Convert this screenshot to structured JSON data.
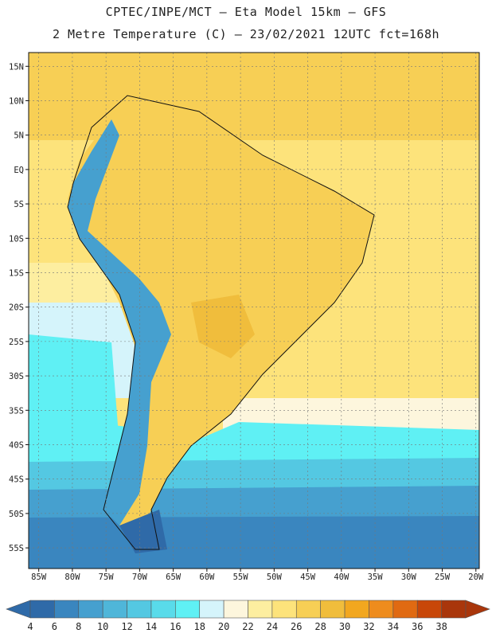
{
  "header": {
    "title_line1": "CPTEC/INPE/MCT –  Eta Model 15km – GFS",
    "title_line2": "2 Metre Temperature (C) – 23/02/2021 12UTC fct=168h"
  },
  "map": {
    "lat_labels": [
      "15N",
      "10N",
      "5N",
      "EQ",
      "5S",
      "10S",
      "15S",
      "20S",
      "25S",
      "30S",
      "35S",
      "40S",
      "45S",
      "50S",
      "55S"
    ],
    "lon_labels": [
      "85W",
      "80W",
      "75W",
      "70W",
      "65W",
      "60W",
      "55W",
      "50W",
      "45W",
      "40W",
      "35W",
      "30W",
      "25W",
      "20W"
    ],
    "extent": {
      "lon_min": -86.5,
      "lon_max": -19.5,
      "lat_min": -58,
      "lat_max": 17
    }
  },
  "colorbar": {
    "ticks": [
      "4",
      "6",
      "8",
      "10",
      "12",
      "14",
      "16",
      "18",
      "20",
      "22",
      "24",
      "26",
      "28",
      "30",
      "32",
      "34",
      "36",
      "38"
    ],
    "colors": [
      "#2f6aa8",
      "#3a86bf",
      "#46a0cf",
      "#4fb6d9",
      "#54c8e2",
      "#59dbea",
      "#5ff0f4",
      "#d5f4fb",
      "#fdf6dd",
      "#fdeea0",
      "#fde37b",
      "#f7cf55",
      "#f0bd3c",
      "#f2a71f",
      "#ee8c1d",
      "#e06a12",
      "#c84709",
      "#a9360b"
    ]
  }
}
